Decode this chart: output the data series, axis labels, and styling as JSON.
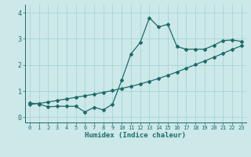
{
  "title": "",
  "xlabel": "Humidex (Indice chaleur)",
  "ylabel": "",
  "bg_color": "#cce8e8",
  "line_color": "#1e6b6b",
  "grid_color": "#aad4d4",
  "xlim": [
    -0.5,
    23.5
  ],
  "ylim": [
    -0.2,
    4.3
  ],
  "x_ticks": [
    0,
    1,
    2,
    3,
    4,
    5,
    6,
    7,
    8,
    9,
    10,
    11,
    12,
    13,
    14,
    15,
    16,
    17,
    18,
    19,
    20,
    21,
    22,
    23
  ],
  "y_ticks": [
    0,
    1,
    2,
    3,
    4
  ],
  "noisy_x": [
    0,
    1,
    2,
    3,
    4,
    5,
    6,
    7,
    8,
    9,
    10,
    11,
    12,
    13,
    14,
    15,
    16,
    17,
    18,
    19,
    20,
    21,
    22,
    23
  ],
  "noisy_y": [
    0.55,
    0.5,
    0.4,
    0.42,
    0.42,
    0.42,
    0.2,
    0.38,
    0.28,
    0.5,
    1.42,
    2.42,
    2.85,
    3.8,
    3.45,
    3.55,
    2.7,
    2.6,
    2.6,
    2.6,
    2.75,
    2.93,
    2.95,
    2.9
  ],
  "smooth_x": [
    0,
    1,
    2,
    3,
    4,
    5,
    6,
    7,
    8,
    9,
    10,
    11,
    12,
    13,
    14,
    15,
    16,
    17,
    18,
    19,
    20,
    21,
    22,
    23
  ],
  "smooth_y": [
    0.48,
    0.53,
    0.58,
    0.64,
    0.7,
    0.76,
    0.82,
    0.88,
    0.95,
    1.02,
    1.1,
    1.18,
    1.27,
    1.37,
    1.48,
    1.6,
    1.73,
    1.87,
    2.01,
    2.15,
    2.29,
    2.44,
    2.59,
    2.73
  ],
  "marker": "D",
  "markersize": 2.0,
  "linewidth": 0.9
}
